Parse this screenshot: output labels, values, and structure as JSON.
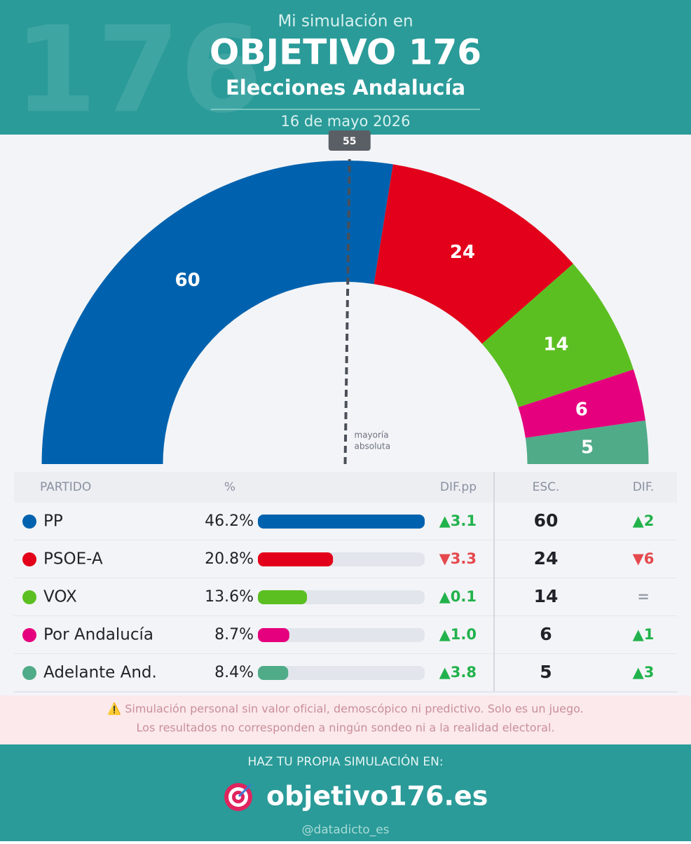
{
  "header": {
    "bg_number": "176",
    "pre": "Mi simulación en",
    "title": "OBJETIVO 176",
    "subtitle": "Elecciones Andalucía",
    "date": "16 de mayo 2026"
  },
  "chart_data": {
    "type": "parliament",
    "categories": [
      "PP",
      "PSOE-A",
      "VOX",
      "Por Andalucía",
      "Adelante And."
    ],
    "values": [
      60,
      24,
      14,
      6,
      5
    ],
    "colors": [
      "#0062ae",
      "#e2001a",
      "#5bbf21",
      "#e5007d",
      "#50ab88"
    ],
    "majority": 55,
    "majority_label": [
      "mayoría",
      "absoluta"
    ]
  },
  "table": {
    "headers": [
      "PARTIDO",
      "%",
      "DIF.pp",
      "ESC.",
      "DIF."
    ],
    "rows": [
      {
        "pct": 46.2,
        "pct_label": "46.2%",
        "dif_pp": "▲3.1",
        "dif": "▲2"
      },
      {
        "pct": 20.8,
        "pct_label": "20.8%",
        "dif_pp": "▼3.3",
        "dif": "▼6"
      },
      {
        "pct": 13.6,
        "pct_label": "13.6%",
        "dif_pp": "▲0.1",
        "dif": "="
      },
      {
        "pct": 8.7,
        "pct_label": "8.7%",
        "dif_pp": "▲1.0",
        "dif": "▲1"
      },
      {
        "pct": 8.4,
        "pct_label": "8.4%",
        "dif_pp": "▲3.8",
        "dif": "▲3"
      }
    ]
  },
  "disclaimer": [
    "⚠️ Simulación personal sin valor oficial, demoscópico ni predictivo. Solo es un juego.",
    "Los resultados no corresponden a ningún sondeo ni a la realidad electoral."
  ],
  "footer": {
    "cta": "HAZ TU PROPIA SIMULACIÓN EN:",
    "site": "objetivo176.es",
    "handle": "@datadicto_es"
  }
}
